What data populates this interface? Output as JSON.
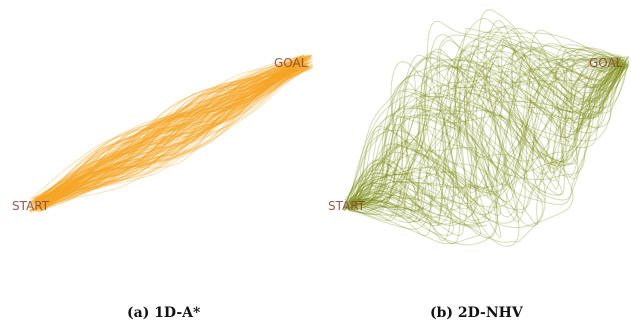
{
  "panels": [
    {
      "id": "a",
      "caption": "(a) 1D-A*",
      "start_label": "START",
      "goal_label": "GOAL",
      "trajectory_color": "#f5a623",
      "trajectory_style": "tightly clustered near-straight paths from START to GOAL"
    },
    {
      "id": "b",
      "caption": "(b) 2D-NHV",
      "start_label": "START",
      "goal_label": "GOAL",
      "trajectory_color": "#7a8a12",
      "trajectory_style": "widely scattered looping paths from START to GOAL"
    }
  ]
}
